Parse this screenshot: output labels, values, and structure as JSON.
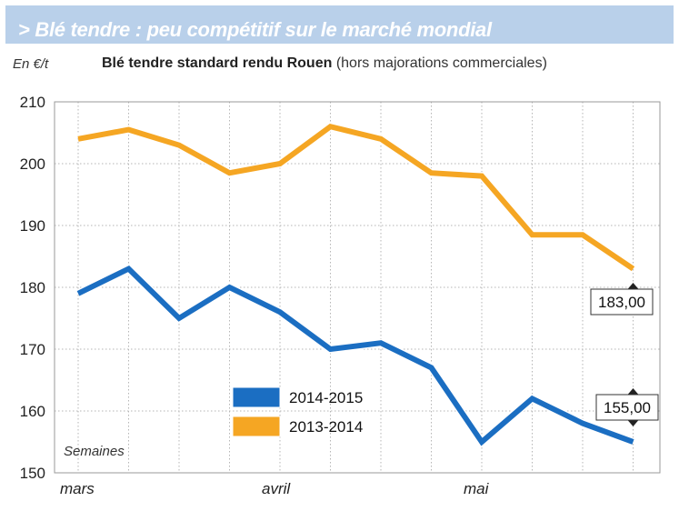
{
  "header": {
    "title": "> Blé tendre : peu compétitif sur le marché mondial"
  },
  "chart_data": {
    "type": "line",
    "title": "Blé tendre standard rendu Rouen",
    "subtitle": "(hors majorations commerciales)",
    "ylabel": "En €/t",
    "xlabel": "Semaines",
    "ylim": [
      150,
      210
    ],
    "yticks": [
      150,
      160,
      170,
      180,
      190,
      200,
      210
    ],
    "x_tick_labels": [
      {
        "label": "mars",
        "index": 0
      },
      {
        "label": "avril",
        "index": 4
      },
      {
        "label": "mai",
        "index": 8
      }
    ],
    "grid": true,
    "legend_placement": "center-left",
    "series": [
      {
        "name": "2014-2015",
        "color": "#1b6ec2",
        "values": [
          179,
          183,
          175,
          180,
          176,
          170,
          171,
          167,
          155,
          162,
          158,
          155
        ],
        "end_label": "155,00"
      },
      {
        "name": "2013-2014",
        "color": "#f5a623",
        "values": [
          204,
          205.5,
          203,
          198.5,
          200,
          206,
          204,
          198.5,
          198,
          188.5,
          188.5,
          183
        ],
        "end_label": "183,00"
      }
    ]
  }
}
